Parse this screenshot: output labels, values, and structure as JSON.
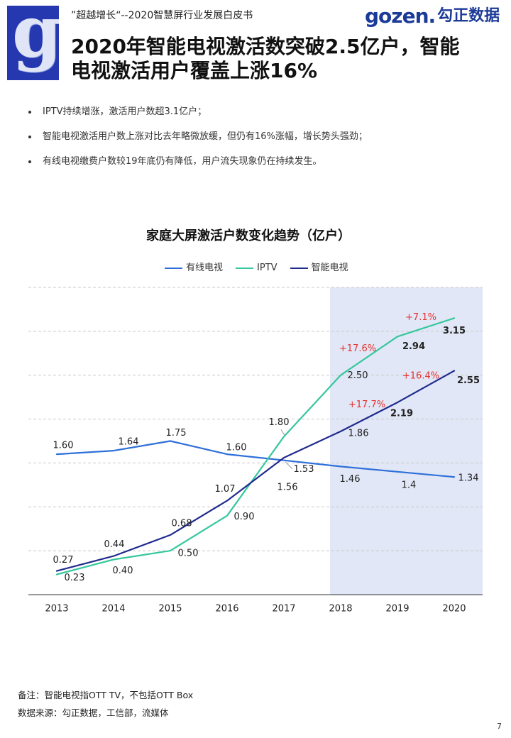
{
  "header": {
    "logo_letter": "g",
    "report_name": "”超越增长“--2020智慧屏行业发展白皮书",
    "brand_latin": "gozen.",
    "brand_cn": "勾正数据"
  },
  "title": {
    "line1": "2020年智能电视激活数突破2.5亿户，智能",
    "line2": "电视激活用户覆盖上涨16%"
  },
  "bullets": [
    "IPTV持续增涨，激活用户数超3.1亿户；",
    "智能电视激活用户数上涨对比去年略微放缓，但仍有16%涨幅，增长势头强劲；",
    "有线电视缴费户数较19年底仍有降低，用户流失现象仍在持续发生。"
  ],
  "colors": {
    "logo_blue": "#2638b0",
    "brand_blue": "#1c3a98",
    "annotation_red": "#e8312f",
    "highlight_band": "#e1e7f6",
    "gridline": "#c9c9c9",
    "axis": "#333333"
  },
  "chart_data": {
    "type": "line",
    "title": "家庭大屏激活户数变化趋势（亿户）",
    "xlabel": "",
    "ylabel": "",
    "categories": [
      "2013",
      "2014",
      "2015",
      "2016",
      "2017",
      "2018",
      "2019",
      "2020"
    ],
    "ylim": [
      0,
      3.5
    ],
    "y_grid_step": 0.5,
    "grid": true,
    "legend_position": "top-center",
    "highlight_range": [
      "2018",
      "2020"
    ],
    "series": [
      {
        "name": "有线电视",
        "color": "#2e6fd9",
        "values": [
          1.6,
          1.64,
          1.75,
          1.6,
          1.53,
          1.46,
          1.4,
          1.34
        ],
        "labels": [
          "1.60",
          "1.64",
          "1.75",
          "1.60",
          "1.53",
          "1.46",
          "1.4",
          "1.34"
        ]
      },
      {
        "name": "IPTV",
        "color": "#35c79d",
        "values": [
          0.23,
          0.4,
          0.5,
          0.9,
          1.8,
          2.5,
          2.94,
          3.15
        ],
        "labels": [
          "0.23",
          "0.40",
          "0.50",
          "0.90",
          "1.80",
          "2.50",
          "2.94",
          "3.15"
        ]
      },
      {
        "name": "智能电视",
        "color": "#202b8d",
        "values": [
          0.27,
          0.44,
          0.68,
          1.07,
          1.56,
          1.86,
          2.19,
          2.55
        ],
        "labels": [
          "0.27",
          "0.44",
          "0.68",
          "1.07",
          "1.56",
          "1.86",
          "2.19",
          "2.55"
        ]
      }
    ],
    "annotations": [
      {
        "series": "IPTV",
        "from": "2019",
        "to": "2020",
        "text": "+7.1%"
      },
      {
        "series": "IPTV",
        "from": "2018",
        "to": "2019",
        "text": "+17.6%"
      },
      {
        "series": "智能电视",
        "from": "2019",
        "to": "2020",
        "text": "+16.4%"
      },
      {
        "series": "智能电视",
        "from": "2018",
        "to": "2019",
        "text": "+17.7%"
      }
    ]
  },
  "footer": {
    "note": "备注：智能电视指OTT TV，不包括OTT Box",
    "source": "数据来源：勾正数据，工信部，流媒体",
    "page_number": "7"
  }
}
